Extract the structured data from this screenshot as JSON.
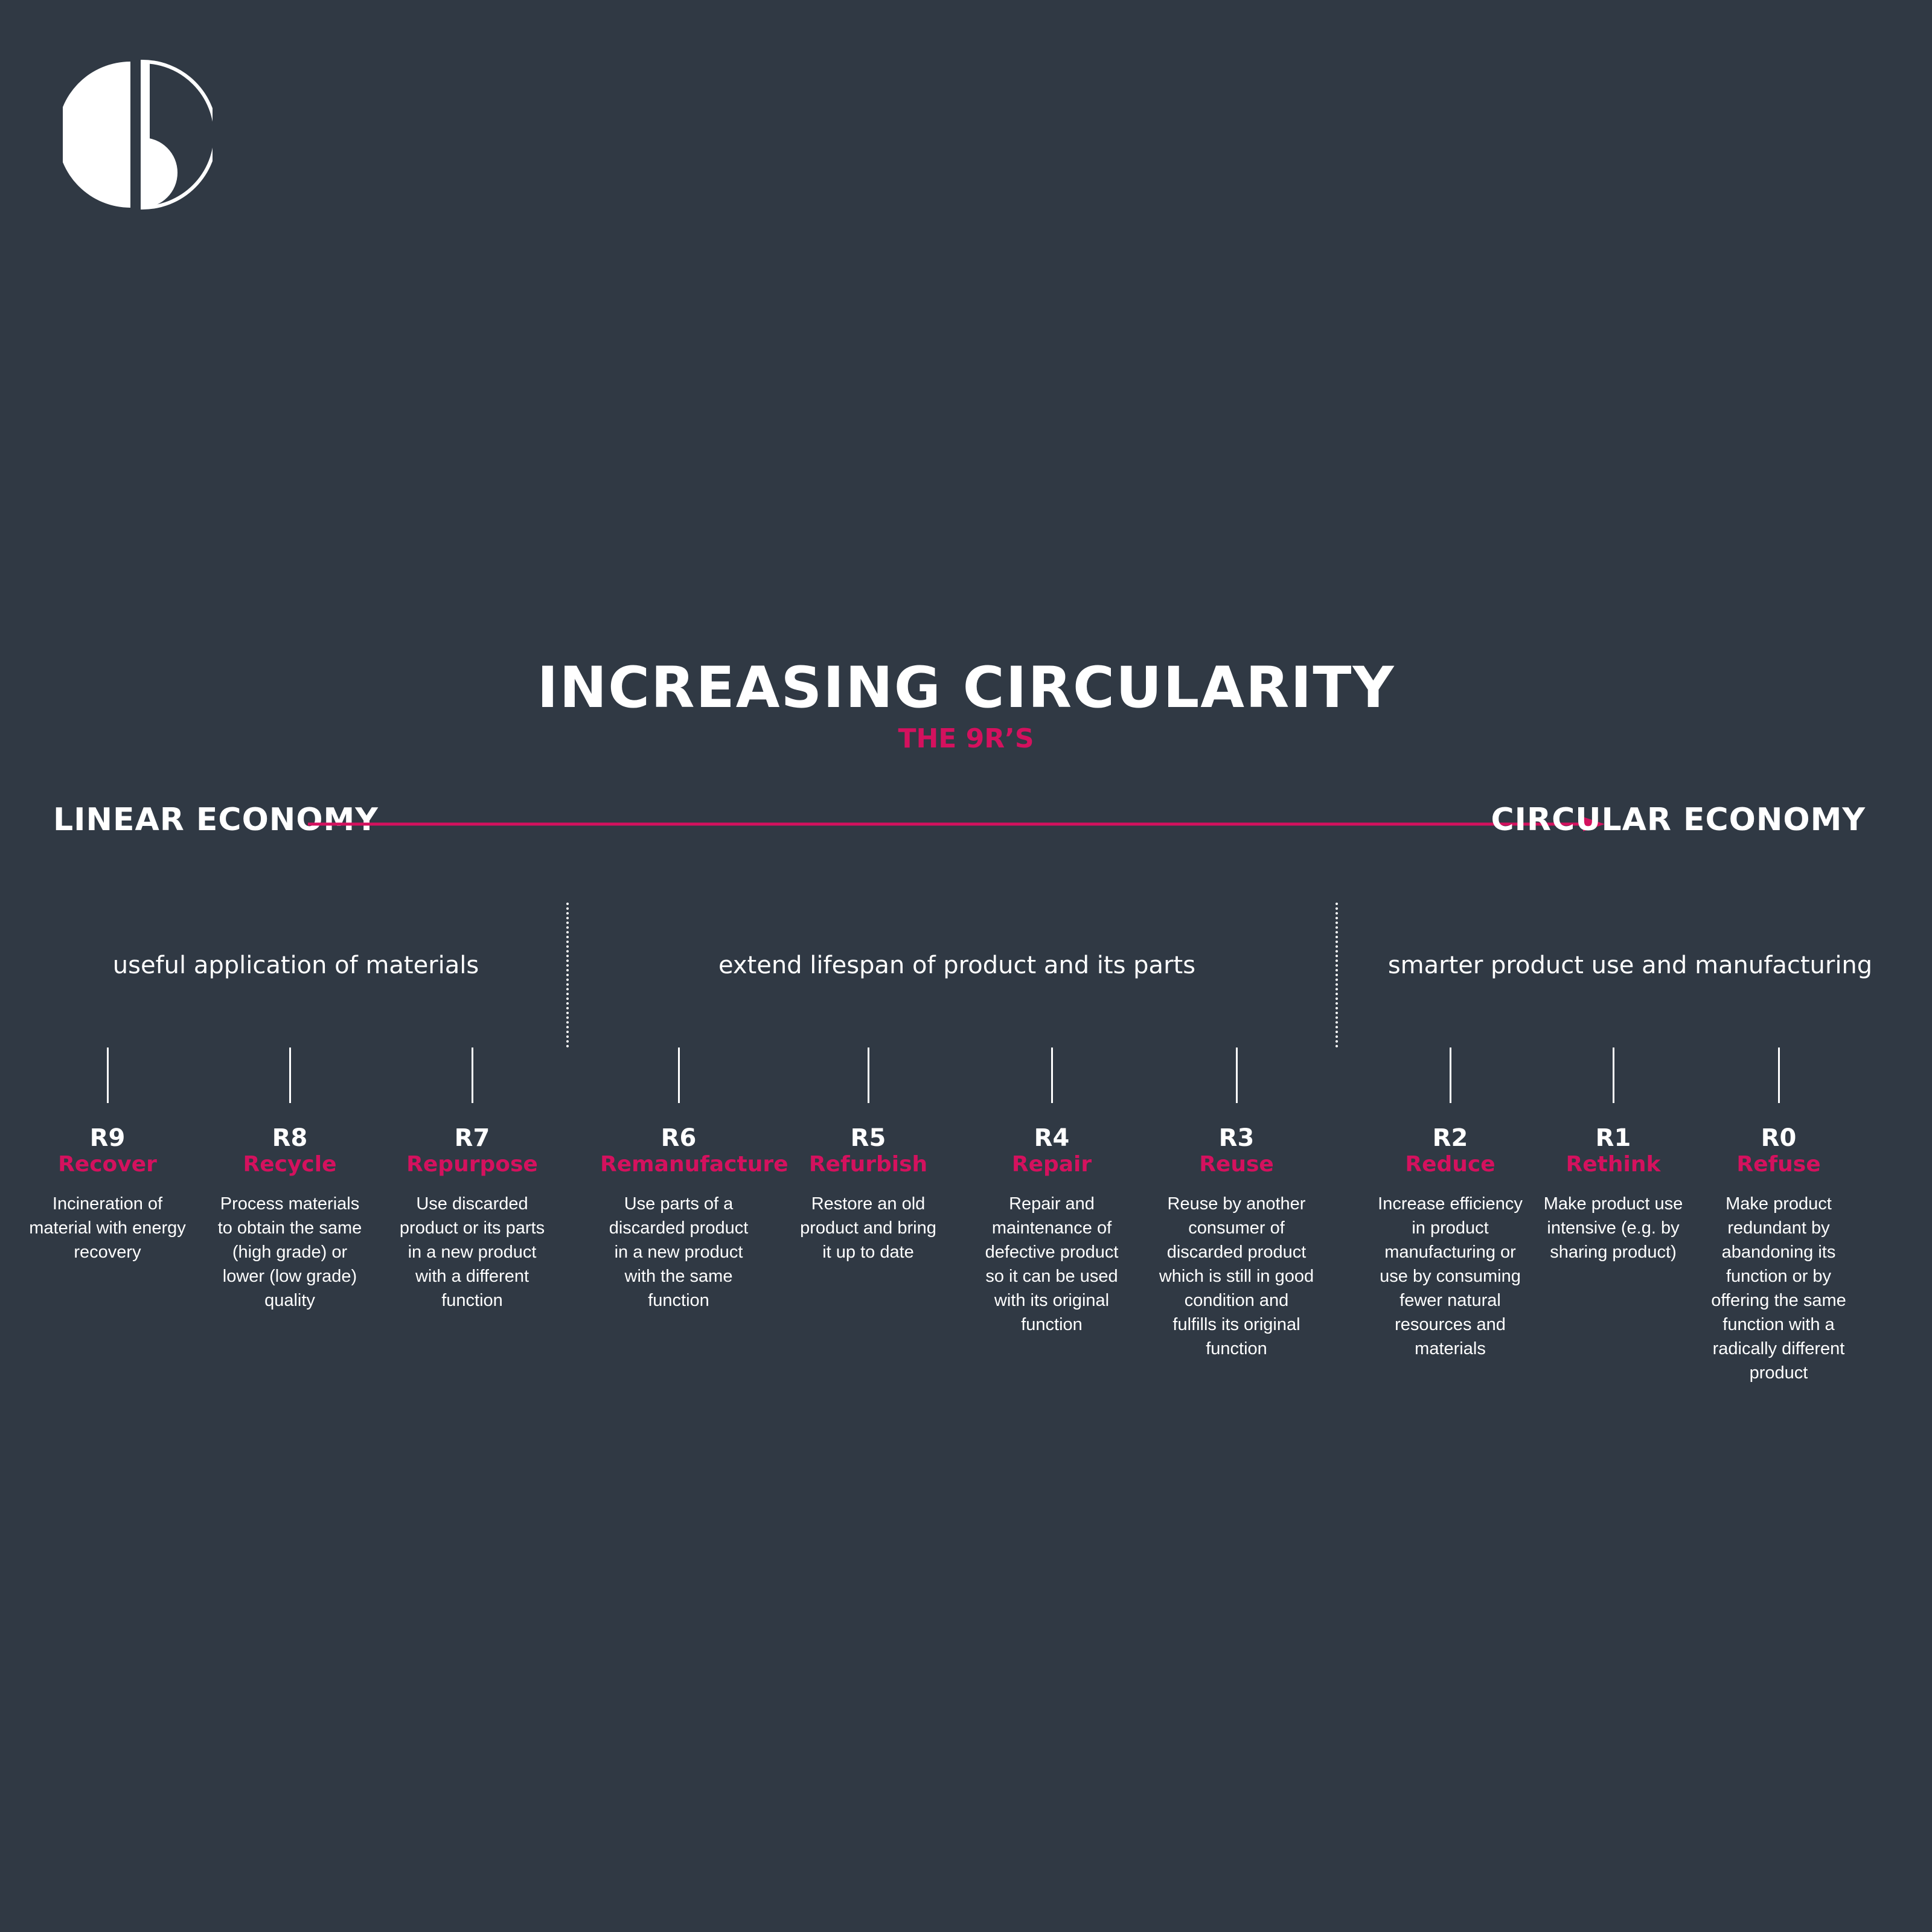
{
  "header": {
    "title": "INCREASING CIRCULARITY",
    "subtitle": "THE 9R’S"
  },
  "axis": {
    "left_label": "LINEAR ECONOMY",
    "right_label": "CIRCULAR ECONOMY",
    "arrow_color": "#d4115e"
  },
  "groups": [
    {
      "label": "useful application of materials"
    },
    {
      "label": "extend lifespan of product and its parts"
    },
    {
      "label": "smarter product use and manufacturing"
    }
  ],
  "strategies": [
    {
      "code": "R9",
      "name": "Recover",
      "description": "Incineration of\nmaterial with energy\nrecovery"
    },
    {
      "code": "R8",
      "name": "Recycle",
      "description": "Process materials\nto obtain the same\n(high grade) or\nlower (low grade)\nquality"
    },
    {
      "code": "R7",
      "name": "Repurpose",
      "description": "Use discarded\nproduct or its parts\nin a new product\nwith a different\nfunction"
    },
    {
      "code": "R6",
      "name": "Remanufacture",
      "description": "Use parts of a\ndiscarded product\nin a new product\nwith the same\nfunction"
    },
    {
      "code": "R5",
      "name": "Refurbish",
      "description": "Restore an old\nproduct and bring\nit up to date"
    },
    {
      "code": "R4",
      "name": "Repair",
      "description": "Repair and\nmaintenance of\ndefective product\nso it can be used\nwith its original\nfunction"
    },
    {
      "code": "R3",
      "name": "Reuse",
      "description": "Reuse by another\nconsumer of\ndiscarded product\nwhich is still in good\ncondition and\nfulfills its original\nfunction"
    },
    {
      "code": "R2",
      "name": "Reduce",
      "description": "Increase efficiency\nin product\nmanufacturing or\nuse by consuming\nfewer natural\nresources and\nmaterials"
    },
    {
      "code": "R1",
      "name": "Rethink",
      "description": "Make product use\nintensive (e.g. by\nsharing product)"
    },
    {
      "code": "R0",
      "name": "Refuse",
      "description": "Make product\nredundant by\nabandoning its\nfunction or by\noffering the same\nfunction with a\nradically different\nproduct"
    }
  ],
  "colors": {
    "background": "#303944",
    "accent": "#d4115e",
    "text": "#ffffff"
  }
}
